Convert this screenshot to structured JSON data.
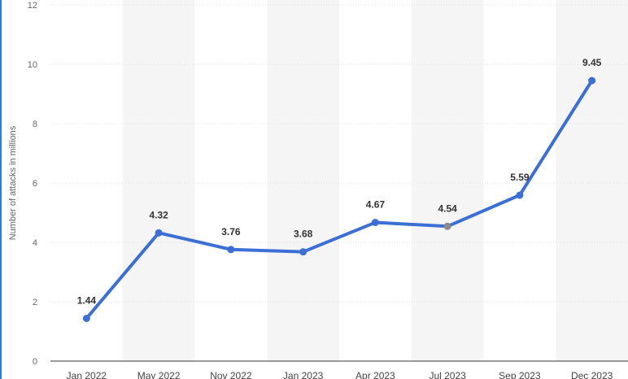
{
  "chart_data": {
    "type": "line",
    "title": "",
    "xlabel": "",
    "ylabel": "Number of attacks in millions",
    "categories": [
      "Jan 2022",
      "May 2022",
      "Nov 2022",
      "Jan 2023",
      "Apr 2023",
      "Jul 2023",
      "Sep 2023",
      "Dec 2023"
    ],
    "series": [
      {
        "values": [
          1.44,
          4.32,
          3.76,
          3.68,
          4.67,
          4.54,
          5.59,
          9.45
        ]
      }
    ],
    "data_labels": [
      "1.44",
      "4.32",
      "3.76",
      "3.68",
      "4.67",
      "4.54",
      "5.59",
      "9.45"
    ],
    "ylim": [
      0,
      12
    ],
    "yticks": [
      0,
      2,
      4,
      6,
      8,
      10,
      12
    ],
    "grid": true,
    "legend": "none"
  },
  "colors": {
    "line": "#3b6fd6",
    "marker": "#3b6fd6",
    "highlight_marker": "#8a8a8a",
    "band": "#f5f5f5",
    "grid": "#e2e2e2",
    "axis": "#333333"
  }
}
